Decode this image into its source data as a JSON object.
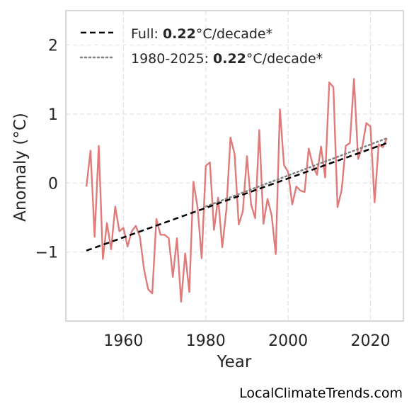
{
  "chart_data": {
    "type": "line",
    "xlabel": "Year",
    "ylabel": "Anomaly (°C)",
    "xlim": [
      1946,
      2028
    ],
    "ylim": [
      -2.0,
      2.5
    ],
    "xticks": [
      1960,
      1980,
      2000,
      2020
    ],
    "yticks": [
      2,
      1,
      0,
      -1
    ],
    "ytick_labels": [
      "2",
      "1",
      "0",
      "−1"
    ],
    "grid": true,
    "legend_position": "top-left",
    "colors": {
      "series": "#e07b7b",
      "full_trend": "#000000",
      "recent_trend": "#808080"
    },
    "series": [
      {
        "x": [
          1951,
          1952,
          1953,
          1954,
          1955,
          1956,
          1957,
          1958,
          1959,
          1960,
          1961,
          1962,
          1963,
          1964,
          1965,
          1966,
          1967,
          1968,
          1969,
          1970,
          1971,
          1972,
          1973,
          1974,
          1975,
          1976,
          1977,
          1978,
          1979,
          1980,
          1981,
          1982,
          1983,
          1984,
          1985,
          1986,
          1987,
          1988,
          1989,
          1990,
          1991,
          1992,
          1993,
          1994,
          1995,
          1996,
          1997,
          1998,
          1999,
          2000,
          2001,
          2002,
          2003,
          2004,
          2005,
          2006,
          2007,
          2008,
          2009,
          2010,
          2011,
          2012,
          2013,
          2014,
          2015,
          2016,
          2017,
          2018,
          2019,
          2020,
          2021,
          2022,
          2023,
          2024
        ],
        "values": [
          -0.05,
          0.47,
          -0.78,
          0.54,
          -1.1,
          -0.58,
          -0.96,
          -0.34,
          -0.7,
          -0.65,
          -0.92,
          -0.7,
          -0.62,
          -0.78,
          -1.25,
          -1.54,
          -1.6,
          -0.52,
          -0.75,
          -0.75,
          -0.8,
          -1.36,
          -0.8,
          -1.72,
          -1.02,
          -1.58,
          0.02,
          -0.35,
          -1.09,
          0.25,
          0.3,
          -0.68,
          -0.21,
          -0.93,
          -0.39,
          0.66,
          0.42,
          -0.6,
          -0.41,
          0.39,
          -0.31,
          -0.51,
          0.77,
          -0.59,
          -0.23,
          -0.47,
          -1.03,
          1.07,
          0.26,
          0.16,
          -0.31,
          -0.05,
          -0.11,
          -0.13,
          0.5,
          0.26,
          0.12,
          0.53,
          0.08,
          1.46,
          1.39,
          -0.35,
          -0.1,
          0.54,
          0.58,
          1.51,
          0.35,
          0.52,
          0.87,
          0.82,
          -0.28,
          0.56,
          0.52,
          0.65
        ]
      }
    ],
    "trends": [
      {
        "label_prefix": "Full: ",
        "label_value": "0.22",
        "label_suffix": "°C/decade*",
        "style": "dashed",
        "x": [
          1951,
          2024
        ],
        "y": [
          -0.98,
          0.58
        ]
      },
      {
        "label_prefix": "1980-2025: ",
        "label_value": "0.22",
        "label_suffix": "°C/decade*",
        "style": "dotted",
        "x": [
          1980,
          2024
        ],
        "y": [
          -0.34,
          0.65
        ]
      }
    ]
  },
  "footer": "LocalClimateTrends.com"
}
